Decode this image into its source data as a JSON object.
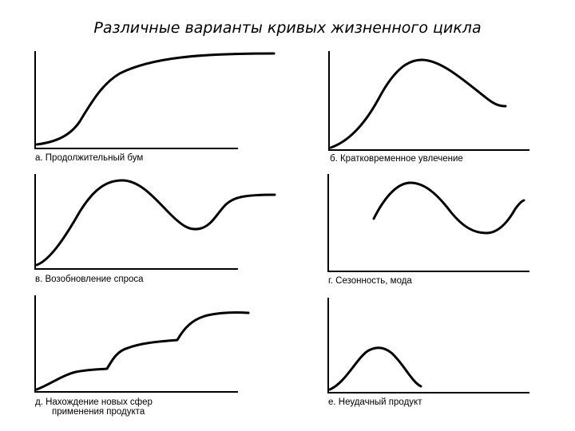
{
  "title": "Различные варианты кривых жизненного цикла",
  "panels": [
    {
      "caption_lines": [
        "а. Продолжительный бум"
      ]
    },
    {
      "caption_lines": [
        "б. Кратковременное увлечение"
      ]
    },
    {
      "caption_lines": [
        "в. Возобновление спроса"
      ]
    },
    {
      "caption_lines": [
        "г. Сезонность, мода"
      ]
    },
    {
      "caption_lines": [
        "д. Нахождение новых сфер",
        "применения продукта"
      ]
    },
    {
      "caption_lines": [
        "е. Неудачный продукт"
      ]
    }
  ]
}
